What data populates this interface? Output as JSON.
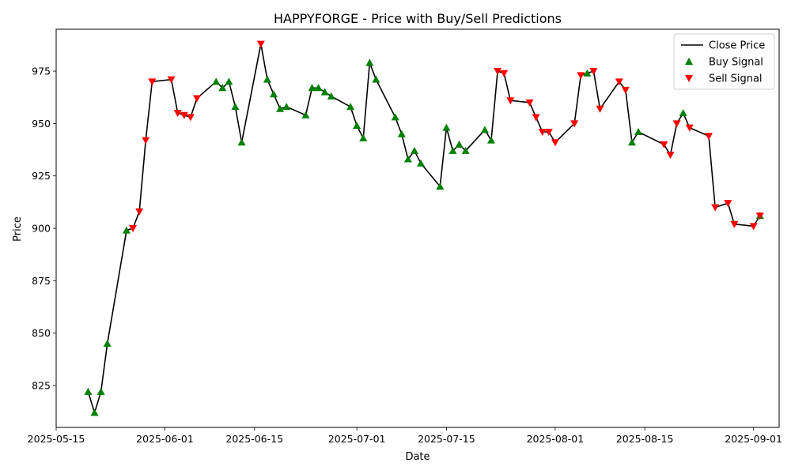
{
  "chart_data": {
    "type": "line",
    "title": "HAPPYFORGE - Price with Buy/Sell Predictions",
    "xlabel": "Date",
    "ylabel": "Price",
    "xlim": [
      "2025-05-15",
      "2025-09-05"
    ],
    "ylim": [
      805,
      995
    ],
    "x_ticks": [
      "2025-05-15",
      "2025-06-01",
      "2025-06-15",
      "2025-07-01",
      "2025-07-15",
      "2025-08-01",
      "2025-08-15",
      "2025-09-01"
    ],
    "y_ticks": [
      825,
      850,
      875,
      900,
      925,
      950,
      975
    ],
    "grid": false,
    "legend_position": "top-right",
    "legend": [
      "Close Price",
      "Buy Signal",
      "Sell Signal"
    ],
    "colors": {
      "line": "#000000",
      "buy": "#008000",
      "sell": "#ff0000"
    },
    "series": [
      {
        "name": "Close Price",
        "points": [
          [
            "2025-05-20",
            822
          ],
          [
            "2025-05-21",
            812
          ],
          [
            "2025-05-22",
            822
          ],
          [
            "2025-05-23",
            845
          ],
          [
            "2025-05-26",
            899
          ],
          [
            "2025-05-27",
            900
          ],
          [
            "2025-05-28",
            908
          ],
          [
            "2025-05-29",
            942
          ],
          [
            "2025-05-30",
            970
          ],
          [
            "2025-06-02",
            971
          ],
          [
            "2025-06-03",
            955
          ],
          [
            "2025-06-04",
            954
          ],
          [
            "2025-06-05",
            953
          ],
          [
            "2025-06-06",
            962
          ],
          [
            "2025-06-09",
            970
          ],
          [
            "2025-06-10",
            967
          ],
          [
            "2025-06-11",
            970
          ],
          [
            "2025-06-12",
            958
          ],
          [
            "2025-06-13",
            941
          ],
          [
            "2025-06-16",
            988
          ],
          [
            "2025-06-17",
            971
          ],
          [
            "2025-06-18",
            964
          ],
          [
            "2025-06-19",
            957
          ],
          [
            "2025-06-20",
            958
          ],
          [
            "2025-06-23",
            954
          ],
          [
            "2025-06-24",
            967
          ],
          [
            "2025-06-25",
            967
          ],
          [
            "2025-06-26",
            965
          ],
          [
            "2025-06-27",
            963
          ],
          [
            "2025-06-30",
            958
          ],
          [
            "2025-07-01",
            949
          ],
          [
            "2025-07-02",
            943
          ],
          [
            "2025-07-03",
            979
          ],
          [
            "2025-07-04",
            971
          ],
          [
            "2025-07-07",
            953
          ],
          [
            "2025-07-08",
            945
          ],
          [
            "2025-07-09",
            933
          ],
          [
            "2025-07-10",
            937
          ],
          [
            "2025-07-11",
            931
          ],
          [
            "2025-07-14",
            920
          ],
          [
            "2025-07-15",
            948
          ],
          [
            "2025-07-16",
            937
          ],
          [
            "2025-07-17",
            940
          ],
          [
            "2025-07-18",
            937
          ],
          [
            "2025-07-21",
            947
          ],
          [
            "2025-07-22",
            942
          ],
          [
            "2025-07-23",
            975
          ],
          [
            "2025-07-24",
            974
          ],
          [
            "2025-07-25",
            961
          ],
          [
            "2025-07-28",
            960
          ],
          [
            "2025-07-29",
            953
          ],
          [
            "2025-07-30",
            946
          ],
          [
            "2025-07-31",
            946
          ],
          [
            "2025-08-01",
            941
          ],
          [
            "2025-08-04",
            950
          ],
          [
            "2025-08-05",
            973
          ],
          [
            "2025-08-06",
            974
          ],
          [
            "2025-08-07",
            975
          ],
          [
            "2025-08-08",
            957
          ],
          [
            "2025-08-11",
            970
          ],
          [
            "2025-08-12",
            966
          ],
          [
            "2025-08-13",
            941
          ],
          [
            "2025-08-14",
            946
          ],
          [
            "2025-08-18",
            940
          ],
          [
            "2025-08-19",
            935
          ],
          [
            "2025-08-20",
            950
          ],
          [
            "2025-08-21",
            955
          ],
          [
            "2025-08-22",
            948
          ],
          [
            "2025-08-25",
            944
          ],
          [
            "2025-08-26",
            910
          ],
          [
            "2025-08-28",
            912
          ],
          [
            "2025-08-29",
            902
          ],
          [
            "2025-09-01",
            901
          ],
          [
            "2025-09-02",
            906
          ]
        ]
      },
      {
        "name": "Buy Signal",
        "points": [
          [
            "2025-05-20",
            822
          ],
          [
            "2025-05-21",
            812
          ],
          [
            "2025-05-22",
            822
          ],
          [
            "2025-05-23",
            845
          ],
          [
            "2025-05-26",
            899
          ],
          [
            "2025-06-09",
            970
          ],
          [
            "2025-06-10",
            967
          ],
          [
            "2025-06-11",
            970
          ],
          [
            "2025-06-12",
            958
          ],
          [
            "2025-06-13",
            941
          ],
          [
            "2025-06-17",
            971
          ],
          [
            "2025-06-18",
            964
          ],
          [
            "2025-06-19",
            957
          ],
          [
            "2025-06-20",
            958
          ],
          [
            "2025-06-23",
            954
          ],
          [
            "2025-06-24",
            967
          ],
          [
            "2025-06-25",
            967
          ],
          [
            "2025-06-26",
            965
          ],
          [
            "2025-06-27",
            963
          ],
          [
            "2025-06-30",
            958
          ],
          [
            "2025-07-01",
            949
          ],
          [
            "2025-07-02",
            943
          ],
          [
            "2025-07-03",
            979
          ],
          [
            "2025-07-04",
            971
          ],
          [
            "2025-07-07",
            953
          ],
          [
            "2025-07-08",
            945
          ],
          [
            "2025-07-09",
            933
          ],
          [
            "2025-07-10",
            937
          ],
          [
            "2025-07-11",
            931
          ],
          [
            "2025-07-14",
            920
          ],
          [
            "2025-07-15",
            948
          ],
          [
            "2025-07-16",
            937
          ],
          [
            "2025-07-17",
            940
          ],
          [
            "2025-07-18",
            937
          ],
          [
            "2025-07-21",
            947
          ],
          [
            "2025-07-22",
            942
          ],
          [
            "2025-08-06",
            974
          ],
          [
            "2025-08-13",
            941
          ],
          [
            "2025-08-14",
            946
          ],
          [
            "2025-08-21",
            955
          ],
          [
            "2025-09-02",
            906
          ]
        ]
      },
      {
        "name": "Sell Signal",
        "points": [
          [
            "2025-05-27",
            900
          ],
          [
            "2025-05-28",
            908
          ],
          [
            "2025-05-29",
            942
          ],
          [
            "2025-05-30",
            970
          ],
          [
            "2025-06-02",
            971
          ],
          [
            "2025-06-03",
            955
          ],
          [
            "2025-06-04",
            954
          ],
          [
            "2025-06-05",
            953
          ],
          [
            "2025-06-06",
            962
          ],
          [
            "2025-06-16",
            988
          ],
          [
            "2025-07-23",
            975
          ],
          [
            "2025-07-24",
            974
          ],
          [
            "2025-07-25",
            961
          ],
          [
            "2025-07-28",
            960
          ],
          [
            "2025-07-29",
            953
          ],
          [
            "2025-07-30",
            946
          ],
          [
            "2025-07-31",
            946
          ],
          [
            "2025-08-01",
            941
          ],
          [
            "2025-08-04",
            950
          ],
          [
            "2025-08-05",
            973
          ],
          [
            "2025-08-07",
            975
          ],
          [
            "2025-08-08",
            957
          ],
          [
            "2025-08-11",
            970
          ],
          [
            "2025-08-12",
            966
          ],
          [
            "2025-08-18",
            940
          ],
          [
            "2025-08-19",
            935
          ],
          [
            "2025-08-20",
            950
          ],
          [
            "2025-08-22",
            948
          ],
          [
            "2025-08-25",
            944
          ],
          [
            "2025-08-26",
            910
          ],
          [
            "2025-08-28",
            912
          ],
          [
            "2025-08-29",
            902
          ],
          [
            "2025-09-01",
            901
          ],
          [
            "2025-09-02",
            906
          ]
        ]
      }
    ]
  }
}
